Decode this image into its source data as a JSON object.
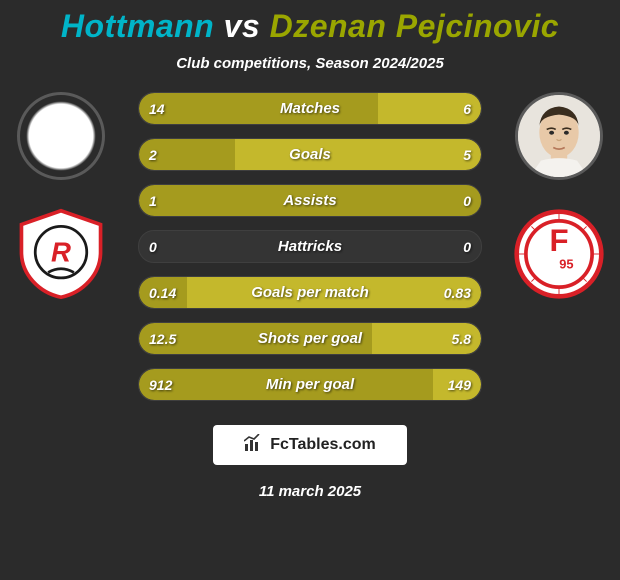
{
  "title": "Hottmann vs Dzenan Pejcinovic",
  "title_colors": {
    "player1": "#00b4c8",
    "player2": "#9aa600"
  },
  "subtitle": "Club competitions, Season 2024/2025",
  "footer_brand": "FcTables.com",
  "footer_date": "11 march 2025",
  "background_color": "#2b2b2b",
  "text_color": "#ffffff",
  "left": {
    "player_name": "Hottmann",
    "avatar_placeholder": true,
    "club": "Jahn Regensburg",
    "club_colors": {
      "primary": "#d92027",
      "secondary": "#ffffff",
      "accent": "#1a1a1a"
    }
  },
  "right": {
    "player_name": "Dzenan Pejcinovic",
    "avatar_placeholder": false,
    "club": "Fortuna Dusseldorf",
    "club_colors": {
      "primary": "#d92027",
      "secondary": "#ffffff"
    }
  },
  "bars": {
    "track_color": "#343434",
    "left_color": "#a59b1e",
    "right_color": "#c4b82c",
    "rows": [
      {
        "label": "Matches",
        "left_val": "14",
        "right_val": "6",
        "left_pct": 70,
        "right_pct": 30
      },
      {
        "label": "Goals",
        "left_val": "2",
        "right_val": "5",
        "left_pct": 28,
        "right_pct": 72
      },
      {
        "label": "Assists",
        "left_val": "1",
        "right_val": "0",
        "left_pct": 100,
        "right_pct": 0
      },
      {
        "label": "Hattricks",
        "left_val": "0",
        "right_val": "0",
        "left_pct": 0,
        "right_pct": 0
      },
      {
        "label": "Goals per match",
        "left_val": "0.14",
        "right_val": "0.83",
        "left_pct": 14,
        "right_pct": 86
      },
      {
        "label": "Shots per goal",
        "left_val": "12.5",
        "right_val": "5.8",
        "left_pct": 68,
        "right_pct": 32
      },
      {
        "label": "Min per goal",
        "left_val": "912",
        "right_val": "149",
        "left_pct": 86,
        "right_pct": 14
      }
    ]
  },
  "typography": {
    "title_fontsize": 32,
    "subtitle_fontsize": 15,
    "bar_label_fontsize": 15,
    "bar_value_fontsize": 14,
    "footer_date_fontsize": 15
  }
}
